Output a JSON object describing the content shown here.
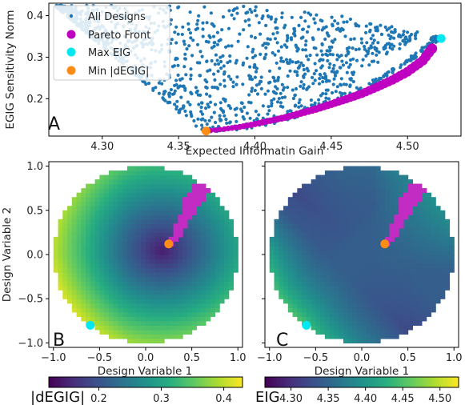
{
  "chart_data": [
    {
      "type": "scatter",
      "panel": "A",
      "xlabel": "Expected Informatin Gain",
      "ylabel": "EGIG Sensitivity Norm",
      "xlim": [
        4.265,
        4.535
      ],
      "ylim": [
        0.11,
        0.43
      ],
      "xticks": [
        "4.30",
        "4.35",
        "4.40",
        "4.45",
        "4.50"
      ],
      "xtick_values": [
        4.3,
        4.35,
        4.4,
        4.45,
        4.5
      ],
      "yticks": [
        "0.2",
        "0.3",
        "0.4"
      ],
      "ytick_values": [
        0.2,
        0.3,
        0.4
      ],
      "legend_position": "top-left",
      "legend": [
        "All Designs",
        "Pareto Front",
        "Max EIG",
        "Min |dEGIG|"
      ],
      "colors": {
        "all": "#1f77b4",
        "pareto": "#c000c0",
        "max_eig": "#00e8f0",
        "min_degig": "#ff8c14"
      },
      "series": [
        {
          "name": "All Designs",
          "description": "dense cloud bounded below by a V-shaped envelope from (4.27, 0.41) down to (4.365, 0.12) and up to (4.522, 0.345); upper boundary near 0.42"
        },
        {
          "name": "Pareto Front",
          "x": [
            4.368,
            4.38,
            4.39,
            4.4,
            4.41,
            4.42,
            4.43,
            4.44,
            4.45,
            4.46,
            4.47,
            4.48,
            4.49,
            4.5,
            4.51,
            4.518
          ],
          "y": [
            0.122,
            0.127,
            0.132,
            0.139,
            0.147,
            0.155,
            0.165,
            0.175,
            0.187,
            0.199,
            0.212,
            0.228,
            0.245,
            0.265,
            0.292,
            0.33
          ]
        },
        {
          "name": "Max EIG",
          "x": [
            4.522
          ],
          "y": [
            0.345
          ]
        },
        {
          "name": "Min |dEGIG|",
          "x": [
            4.368
          ],
          "y": [
            0.122
          ]
        }
      ]
    },
    {
      "type": "heatmap",
      "panel": "B",
      "xlabel": "Design Variable 1",
      "ylabel": "Design Variable 2",
      "xlim": [
        -1.05,
        1.05
      ],
      "ylim": [
        -1.05,
        1.05
      ],
      "xticks": [
        "−1.0",
        "−0.5",
        "0.0",
        "0.5",
        "1.0"
      ],
      "yticks": [
        "−1.0",
        "−0.5",
        "0.0",
        "0.5",
        "1.0"
      ],
      "colorbar_label": "|dEGIG|",
      "colorbar_ticks": [
        "0.2",
        "0.3",
        "0.4"
      ],
      "colorbar_tick_values": [
        0.2,
        0.3,
        0.4
      ],
      "colorbar_range": [
        0.12,
        0.43
      ],
      "colormap": "viridis",
      "pareto_region": "magenta band from (0.25, 0.1) to (0.7, 0.85)",
      "markers": [
        {
          "name": "Min |dEGIG|",
          "x": 0.25,
          "y": 0.12,
          "color": "#ff8c14"
        },
        {
          "name": "Max EIG",
          "x": -0.6,
          "y": -0.8,
          "color": "#00e8f0"
        }
      ]
    },
    {
      "type": "heatmap",
      "panel": "C",
      "xlabel": "Design Variable 1",
      "xlim": [
        -1.05,
        1.05
      ],
      "ylim": [
        -1.05,
        1.05
      ],
      "xticks": [
        "−1.0",
        "−0.5",
        "0.0",
        "0.5",
        "1.0"
      ],
      "yticks": [],
      "colorbar_label": "EIG",
      "colorbar_ticks": [
        "4.30",
        "4.35",
        "4.40",
        "4.45",
        "4.50"
      ],
      "colorbar_tick_values": [
        4.3,
        4.35,
        4.4,
        4.45,
        4.5
      ],
      "colorbar_range": [
        4.265,
        4.525
      ],
      "colormap": "viridis",
      "markers": [
        {
          "name": "Min |dEGIG|",
          "x": 0.25,
          "y": 0.12,
          "color": "#ff8c14"
        },
        {
          "name": "Max EIG",
          "x": -0.6,
          "y": -0.8,
          "color": "#00e8f0"
        }
      ]
    }
  ],
  "labels": {
    "panel_a": "A",
    "panel_b": "B",
    "panel_c": "C"
  }
}
